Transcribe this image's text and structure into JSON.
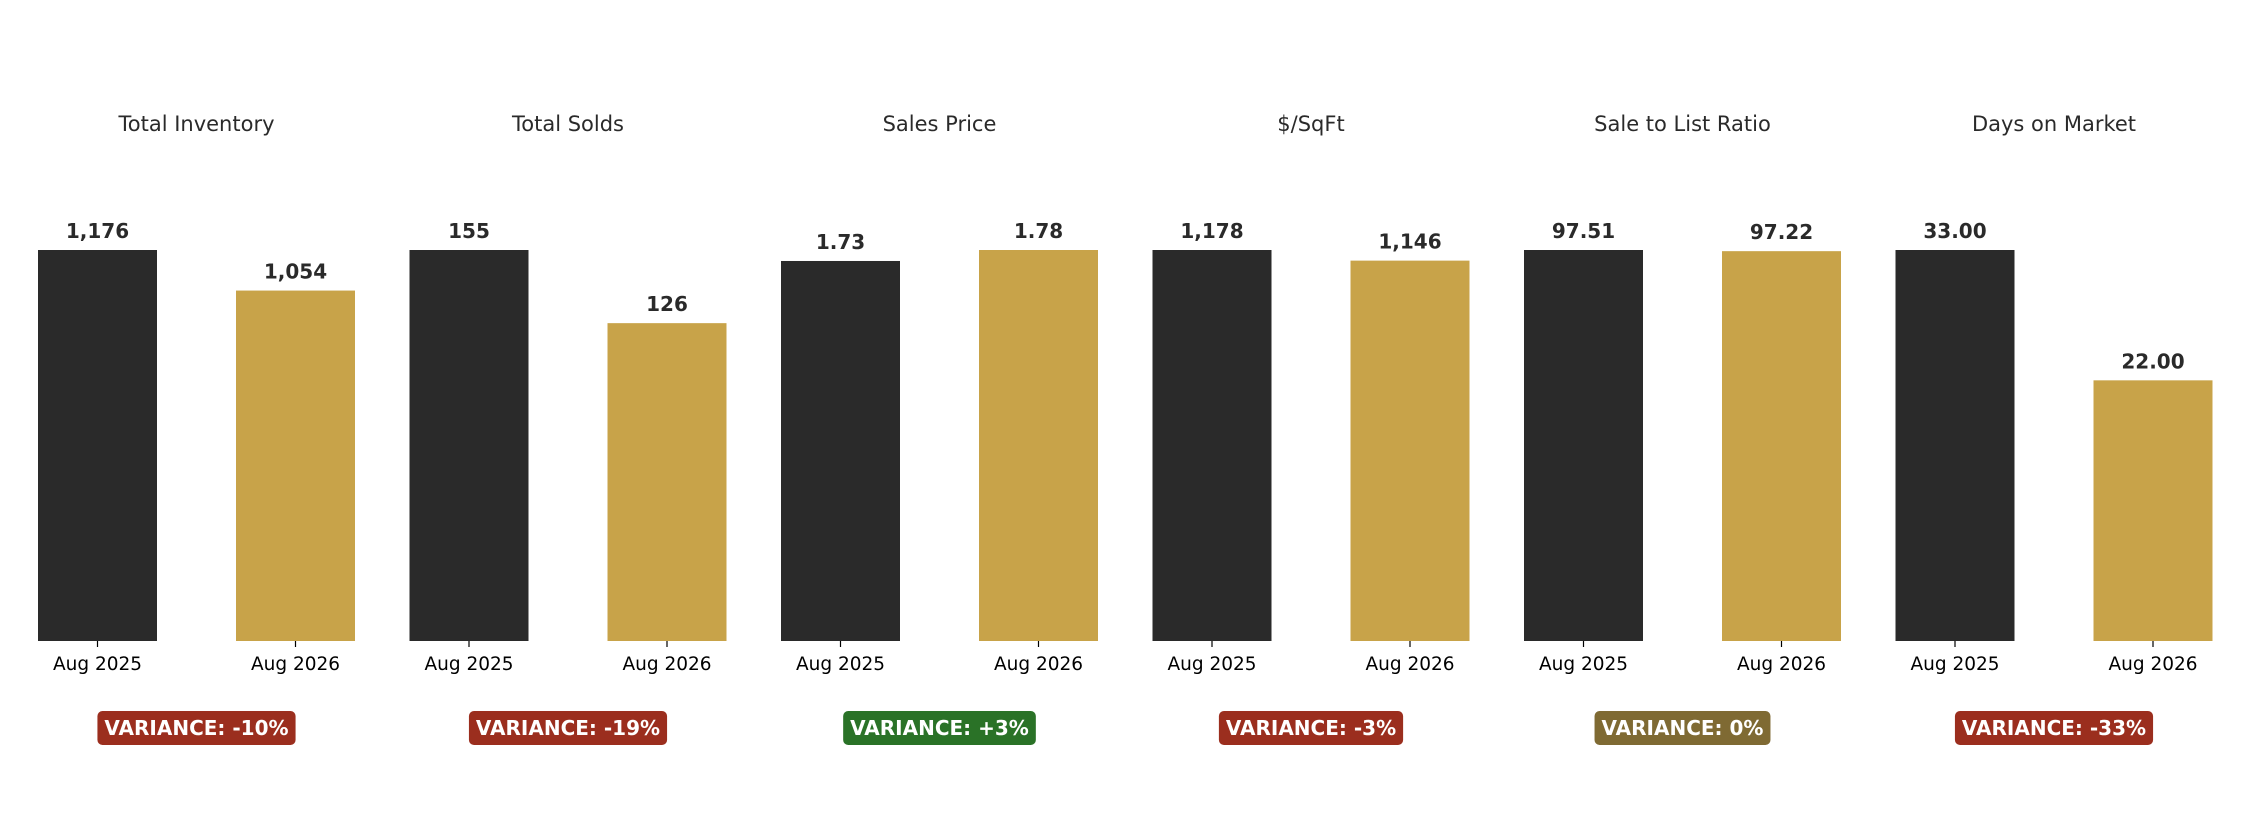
{
  "colors": {
    "bar_2025": "#2a2a2a",
    "bar_2026": "#c8a349",
    "variance_negative": "#9b2e1e",
    "variance_positive": "#2a7227",
    "variance_neutral": "#7f6a33",
    "text": "#2a2a2a"
  },
  "chart_data": [
    {
      "type": "bar",
      "title": "Total Inventory",
      "categories": [
        "Aug 2025",
        "Aug 2026"
      ],
      "values": [
        1176,
        1054
      ],
      "value_labels": [
        "1,176",
        "1,054"
      ],
      "variance_label": "VARIANCE: -10%",
      "variance_type": "negative"
    },
    {
      "type": "bar",
      "title": "Total Solds",
      "categories": [
        "Aug 2025",
        "Aug 2026"
      ],
      "values": [
        155,
        126
      ],
      "value_labels": [
        "155",
        "126"
      ],
      "variance_label": "VARIANCE: -19%",
      "variance_type": "negative"
    },
    {
      "type": "bar",
      "title": "Sales Price",
      "categories": [
        "Aug 2025",
        "Aug 2026"
      ],
      "values": [
        1.73,
        1.78
      ],
      "value_labels": [
        "1.73",
        "1.78"
      ],
      "variance_label": "VARIANCE: +3%",
      "variance_type": "positive"
    },
    {
      "type": "bar",
      "title": "$/SqFt",
      "categories": [
        "Aug 2025",
        "Aug 2026"
      ],
      "values": [
        1178,
        1146
      ],
      "value_labels": [
        "1,178",
        "1,146"
      ],
      "variance_label": "VARIANCE: -3%",
      "variance_type": "negative"
    },
    {
      "type": "bar",
      "title": "Sale to List Ratio",
      "categories": [
        "Aug 2025",
        "Aug 2026"
      ],
      "values": [
        97.51,
        97.22
      ],
      "value_labels": [
        "97.51",
        "97.22"
      ],
      "variance_label": "VARIANCE: 0%",
      "variance_type": "neutral"
    },
    {
      "type": "bar",
      "title": "Days on Market",
      "categories": [
        "Aug 2025",
        "Aug 2026"
      ],
      "values": [
        33.0,
        22.0
      ],
      "value_labels": [
        "33.00",
        "22.00"
      ],
      "variance_label": "VARIANCE: -33%",
      "variance_type": "negative"
    }
  ]
}
